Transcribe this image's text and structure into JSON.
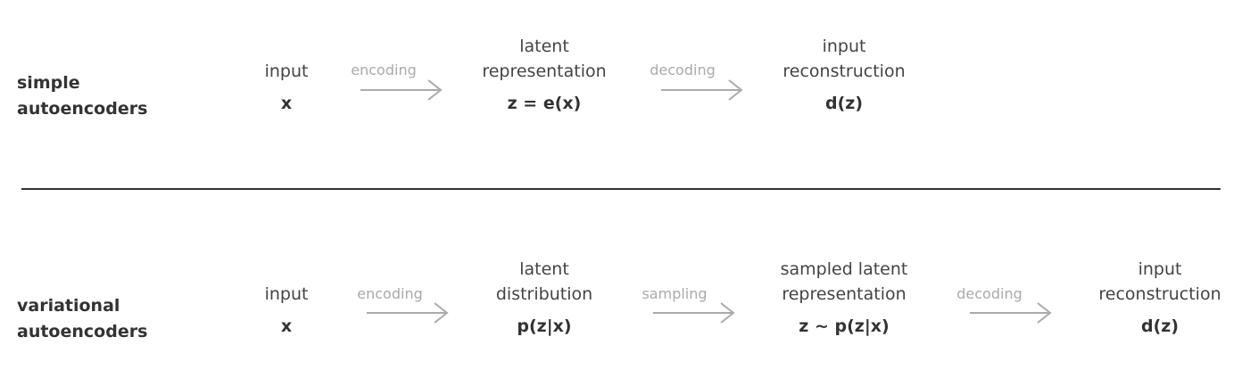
{
  "rows": [
    {
      "label": [
        "simple",
        "autoencoders"
      ],
      "nodes": [
        {
          "title": [
            "input"
          ],
          "math": "x"
        },
        {
          "title": [
            "latent",
            "representation"
          ],
          "math": "z = e(x)"
        },
        {
          "title": [
            "input",
            "reconstruction"
          ],
          "math": "d(z)"
        }
      ],
      "arrows": [
        "encoding",
        "decoding"
      ]
    },
    {
      "label": [
        "variational",
        "autoencoders"
      ],
      "nodes": [
        {
          "title": [
            "input"
          ],
          "math": "x"
        },
        {
          "title": [
            "latent",
            "distribution"
          ],
          "math": "p(z|x)"
        },
        {
          "title": [
            "sampled latent",
            "representation"
          ],
          "math": "z ~ p(z|x)"
        },
        {
          "title": [
            "input",
            "reconstruction"
          ],
          "math": "d(z)"
        }
      ],
      "arrows": [
        "encoding",
        "sampling",
        "decoding"
      ]
    }
  ],
  "colors": {
    "text": "#333333",
    "arrow": "#aaaaaa",
    "divider": "#333333"
  }
}
